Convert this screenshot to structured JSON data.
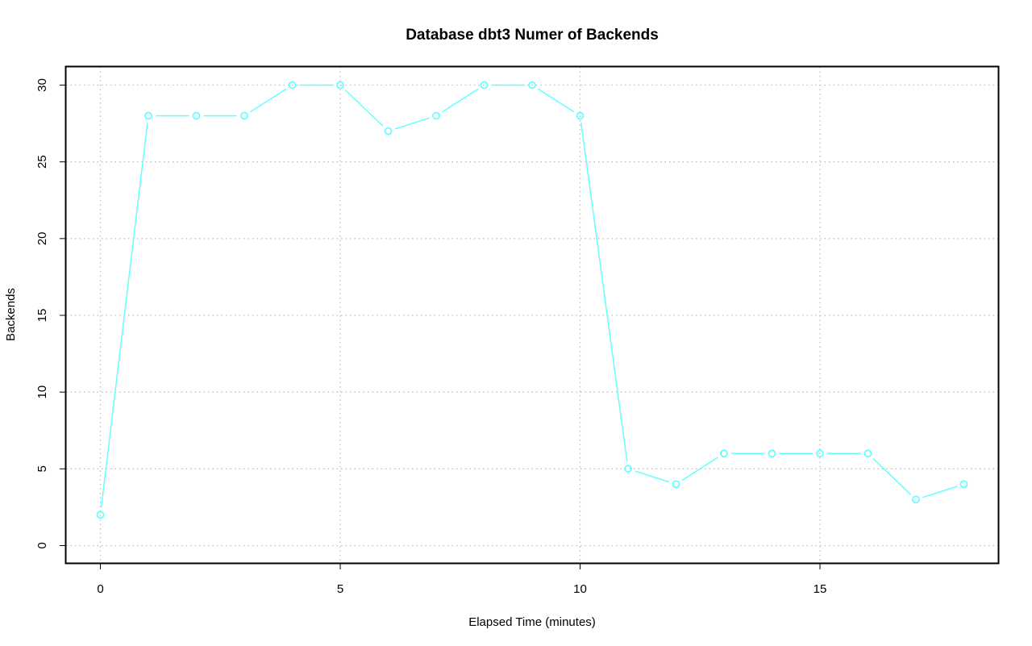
{
  "chart_data": {
    "type": "line",
    "title": "Database dbt3 Numer of Backends",
    "xlabel": "Elapsed Time (minutes)",
    "ylabel": "Backends",
    "x": [
      0,
      1,
      2,
      3,
      4,
      5,
      6,
      7,
      8,
      9,
      10,
      11,
      12,
      13,
      14,
      15,
      16,
      17,
      18
    ],
    "series": [
      {
        "values": [
          2,
          28,
          28,
          28,
          30,
          30,
          27,
          28,
          30,
          30,
          28,
          5,
          4,
          6,
          6,
          6,
          6,
          3,
          4
        ],
        "color": "#66ffff",
        "marker": "open-circle"
      }
    ],
    "xlim": [
      0,
      18
    ],
    "ylim": [
      0,
      30
    ],
    "xticks": [
      "0",
      "5",
      "10",
      "15"
    ],
    "yticks": [
      "0",
      "5",
      "10",
      "15",
      "20",
      "25",
      "30"
    ],
    "grid": true,
    "grid_style": "dotted",
    "grid_color": "#bebebe"
  }
}
